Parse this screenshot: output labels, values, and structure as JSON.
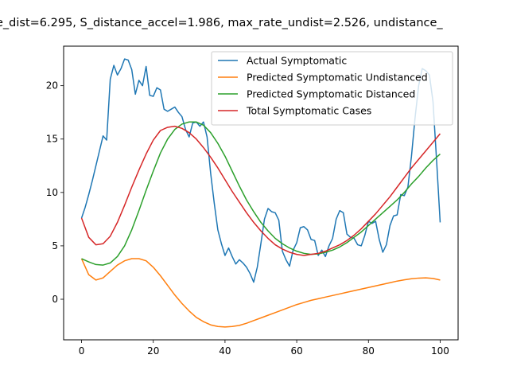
{
  "chart_data": {
    "type": "line",
    "title": "e_dist=6.295, S_distance_accel=1.986, max_rate_undist=2.526, undistance_",
    "xlabel": "",
    "ylabel": "",
    "xlim": [
      -5,
      105
    ],
    "ylim": [
      -3.8,
      23.7
    ],
    "xticks": [
      0,
      20,
      40,
      60,
      80,
      100
    ],
    "yticks": [
      0,
      5,
      10,
      15,
      20
    ],
    "grid": false,
    "legend_position": "top-right",
    "series": [
      {
        "name": "Actual Symptomatic",
        "color": "#1f77b4",
        "x": [
          0,
          1,
          2,
          3,
          4,
          5,
          6,
          7,
          8,
          9,
          10,
          11,
          12,
          13,
          14,
          15,
          16,
          17,
          18,
          19,
          20,
          21,
          22,
          23,
          24,
          25,
          26,
          27,
          28,
          29,
          30,
          31,
          32,
          33,
          34,
          35,
          36,
          37,
          38,
          39,
          40,
          41,
          42,
          43,
          44,
          45,
          46,
          47,
          48,
          49,
          50,
          51,
          52,
          53,
          54,
          55,
          56,
          57,
          58,
          59,
          60,
          61,
          62,
          63,
          64,
          65,
          66,
          67,
          68,
          69,
          70,
          71,
          72,
          73,
          74,
          75,
          76,
          77,
          78,
          79,
          80,
          81,
          82,
          83,
          84,
          85,
          86,
          87,
          88,
          89,
          90,
          91,
          92,
          93,
          94,
          95,
          96,
          97,
          98,
          99,
          100
        ],
        "y": [
          7.6,
          8.6,
          9.8,
          11.1,
          12.5,
          13.9,
          15.3,
          14.9,
          20.6,
          21.9,
          21.0,
          21.6,
          22.5,
          22.4,
          21.5,
          19.2,
          20.5,
          20.0,
          21.8,
          19.1,
          19.0,
          19.8,
          19.6,
          17.8,
          17.6,
          17.8,
          18.0,
          17.5,
          17.1,
          15.9,
          15.2,
          16.5,
          16.6,
          16.2,
          16.6,
          15.2,
          11.8,
          9.0,
          6.5,
          5.2,
          4.1,
          4.8,
          4.0,
          3.3,
          3.7,
          3.4,
          3.0,
          2.4,
          1.6,
          3.0,
          5.2,
          7.5,
          8.5,
          8.2,
          8.1,
          7.4,
          4.5,
          3.7,
          3.1,
          4.6,
          5.3,
          6.7,
          6.8,
          6.5,
          5.6,
          5.5,
          4.1,
          4.6,
          4.0,
          5.0,
          5.7,
          7.5,
          8.3,
          8.1,
          6.1,
          5.8,
          5.7,
          5.1,
          5.0,
          6.0,
          7.3,
          7.1,
          7.3,
          5.6,
          4.4,
          5.1,
          6.9,
          7.8,
          7.9,
          9.8,
          9.7,
          10.5,
          13.4,
          17.0,
          20.0,
          21.6,
          21.4,
          21.0,
          18.5,
          13.0,
          7.2
        ]
      },
      {
        "name": "Predicted Symptomatic Undistanced",
        "color": "#ff7f0e",
        "x": [
          0,
          2,
          4,
          6,
          8,
          10,
          12,
          14,
          16,
          18,
          20,
          22,
          24,
          26,
          28,
          30,
          32,
          34,
          36,
          38,
          40,
          42,
          44,
          46,
          48,
          50,
          52,
          54,
          56,
          58,
          60,
          62,
          64,
          66,
          68,
          70,
          72,
          74,
          76,
          78,
          80,
          82,
          84,
          86,
          88,
          90,
          92,
          94,
          96,
          98,
          100
        ],
        "y": [
          3.8,
          2.3,
          1.8,
          2.0,
          2.6,
          3.2,
          3.6,
          3.8,
          3.8,
          3.6,
          3.0,
          2.2,
          1.3,
          0.4,
          -0.4,
          -1.1,
          -1.7,
          -2.1,
          -2.4,
          -2.55,
          -2.6,
          -2.55,
          -2.45,
          -2.25,
          -2.0,
          -1.75,
          -1.5,
          -1.25,
          -1.0,
          -0.75,
          -0.5,
          -0.3,
          -0.1,
          0.05,
          0.2,
          0.35,
          0.5,
          0.65,
          0.8,
          0.95,
          1.1,
          1.25,
          1.4,
          1.55,
          1.7,
          1.82,
          1.92,
          1.98,
          2.0,
          1.95,
          1.8
        ]
      },
      {
        "name": "Predicted Symptomatic Distanced",
        "color": "#2ca02c",
        "x": [
          0,
          2,
          4,
          6,
          8,
          10,
          12,
          14,
          16,
          18,
          20,
          22,
          24,
          26,
          28,
          30,
          32,
          34,
          36,
          38,
          40,
          42,
          44,
          46,
          48,
          50,
          52,
          54,
          56,
          58,
          60,
          62,
          64,
          66,
          68,
          70,
          72,
          74,
          76,
          78,
          80,
          82,
          84,
          86,
          88,
          90,
          92,
          94,
          96,
          98,
          100
        ],
        "y": [
          3.8,
          3.5,
          3.25,
          3.2,
          3.4,
          4.0,
          5.0,
          6.5,
          8.3,
          10.2,
          12.0,
          13.7,
          15.0,
          15.9,
          16.4,
          16.6,
          16.6,
          16.3,
          15.6,
          14.6,
          13.4,
          12.0,
          10.6,
          9.3,
          8.2,
          7.2,
          6.4,
          5.7,
          5.2,
          4.8,
          4.5,
          4.3,
          4.2,
          4.25,
          4.4,
          4.6,
          4.9,
          5.3,
          5.8,
          6.3,
          6.9,
          7.5,
          8.1,
          8.7,
          9.3,
          10.0,
          10.8,
          11.5,
          12.3,
          13.0,
          13.6
        ]
      },
      {
        "name": "Total Symptomatic Cases",
        "color": "#d62728",
        "x": [
          0,
          2,
          4,
          6,
          8,
          10,
          12,
          14,
          16,
          18,
          20,
          22,
          24,
          26,
          28,
          30,
          32,
          34,
          36,
          38,
          40,
          42,
          44,
          46,
          48,
          50,
          52,
          54,
          56,
          58,
          60,
          62,
          64,
          66,
          68,
          70,
          72,
          74,
          76,
          78,
          80,
          82,
          84,
          86,
          88,
          90,
          92,
          94,
          96,
          98,
          100
        ],
        "y": [
          7.6,
          5.8,
          5.1,
          5.2,
          5.9,
          7.2,
          8.8,
          10.5,
          12.1,
          13.6,
          14.9,
          15.8,
          16.1,
          16.2,
          16.0,
          15.6,
          15.0,
          14.2,
          13.3,
          12.3,
          11.2,
          10.1,
          9.1,
          8.1,
          7.2,
          6.4,
          5.7,
          5.1,
          4.7,
          4.4,
          4.2,
          4.1,
          4.2,
          4.3,
          4.5,
          4.8,
          5.1,
          5.5,
          6.0,
          6.6,
          7.3,
          8.0,
          8.8,
          9.6,
          10.5,
          11.4,
          12.3,
          13.1,
          13.9,
          14.7,
          15.5
        ]
      }
    ]
  }
}
